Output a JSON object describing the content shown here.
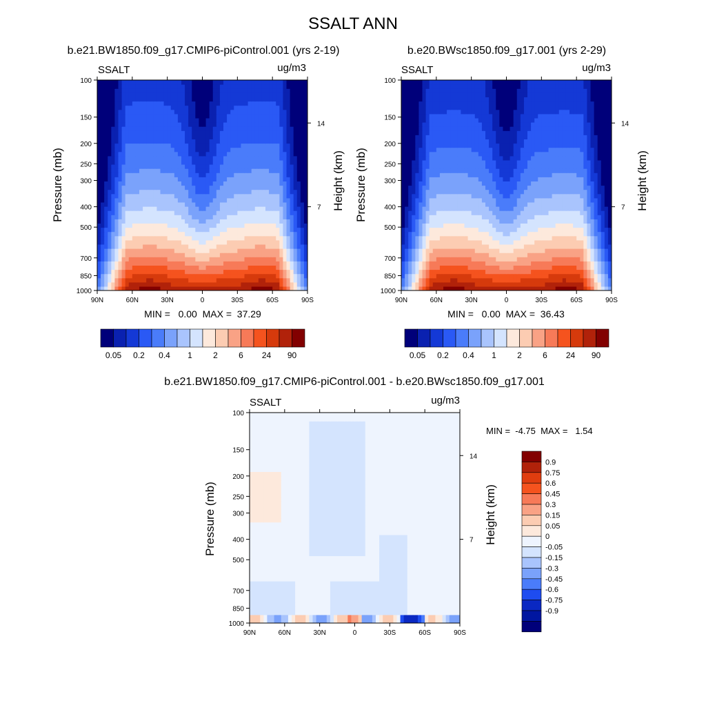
{
  "figure": {
    "title": "SSALT ANN"
  },
  "colors": {
    "abs_palette": [
      "#00007a",
      "#0a21b0",
      "#1439d6",
      "#2a59f5",
      "#4a7cfa",
      "#7aa2fb",
      "#a9c4fd",
      "#d4e4fe",
      "#fde9dc",
      "#fcccb2",
      "#f9a285",
      "#f77a58",
      "#f5531e",
      "#d63a0c",
      "#b1220a",
      "#820000"
    ],
    "diff_palette_top_down": [
      "#820000",
      "#b1220a",
      "#e03d0f",
      "#f5531e",
      "#f77a58",
      "#f9a285",
      "#fcccb2",
      "#fde9dc",
      "#eef4fe",
      "#d4e4fe",
      "#a9c4fd",
      "#7aa2fb",
      "#4a7cfa",
      "#1e4cf0",
      "#0a28c2",
      "#0016a0",
      "#00007a"
    ]
  },
  "chart_data": [
    {
      "type": "heatmap",
      "title": "b.e21.BW1850.f09_g17.CMIP6-piControl.001 (yrs 2-19)",
      "left_label": "SSALT",
      "right_label": "ug/m3",
      "ylabel": "Pressure (mb)",
      "ylabel_right": "Height (km)",
      "x_ticks": [
        "90N",
        "60N",
        "30N",
        "0",
        "30S",
        "60S",
        "90S"
      ],
      "y_ticks": [
        "100",
        "150",
        "200",
        "250",
        "300",
        "400",
        "500",
        "700",
        "850",
        "1000"
      ],
      "y_ticks_right": [
        "14",
        "7"
      ],
      "ylim": [
        1000,
        100
      ],
      "xlim": [
        90,
        -90
      ],
      "stats": "MIN =   0.00  MAX =  37.29",
      "min": 0.0,
      "max": 37.29,
      "colorbar_labels": [
        "0.05",
        "0.2",
        "0.4",
        "1",
        "2",
        "6",
        "24",
        "90"
      ],
      "profile": {
        "p_surface_band": 920,
        "column_top_deg": 30
      }
    },
    {
      "type": "heatmap",
      "title": "b.e20.BWsc1850.f09_g17.001 (yrs 2-29)",
      "left_label": "SSALT",
      "right_label": "ug/m3",
      "ylabel": "Pressure (mb)",
      "ylabel_right": "Height (km)",
      "x_ticks": [
        "90N",
        "60N",
        "30N",
        "0",
        "30S",
        "60S",
        "90S"
      ],
      "y_ticks": [
        "100",
        "150",
        "200",
        "250",
        "300",
        "400",
        "500",
        "700",
        "850",
        "1000"
      ],
      "y_ticks_right": [
        "14",
        "7"
      ],
      "ylim": [
        1000,
        100
      ],
      "xlim": [
        90,
        -90
      ],
      "stats": "MIN =   0.00  MAX =  36.43",
      "min": 0.0,
      "max": 36.43,
      "colorbar_labels": [
        "0.05",
        "0.2",
        "0.4",
        "1",
        "2",
        "6",
        "24",
        "90"
      ],
      "profile": {
        "p_surface_band": 920,
        "column_top_deg": 30
      }
    },
    {
      "type": "heatmap",
      "title": "b.e21.BW1850.f09_g17.CMIP6-piControl.001 - b.e20.BWsc1850.f09_g17.001",
      "left_label": "SSALT",
      "right_label": "ug/m3",
      "ylabel": "Pressure (mb)",
      "ylabel_right": "Height (km)",
      "x_ticks": [
        "90N",
        "60N",
        "30N",
        "0",
        "30S",
        "60S",
        "90S"
      ],
      "y_ticks": [
        "100",
        "150",
        "200",
        "250",
        "300",
        "400",
        "500",
        "700",
        "850",
        "1000"
      ],
      "y_ticks_right": [
        "14",
        "7"
      ],
      "ylim": [
        1000,
        100
      ],
      "xlim": [
        90,
        -90
      ],
      "stats": "MIN =  -4.75  MAX =   1.54",
      "min": -4.75,
      "max": 1.54,
      "colorbar_labels": [
        "0.9",
        "0.75",
        "0.6",
        "0.45",
        "0.3",
        "0.15",
        "0.05",
        "0",
        "-0.05",
        "-0.15",
        "-0.3",
        "-0.45",
        "-0.6",
        "-0.75",
        "-0.9"
      ]
    }
  ]
}
